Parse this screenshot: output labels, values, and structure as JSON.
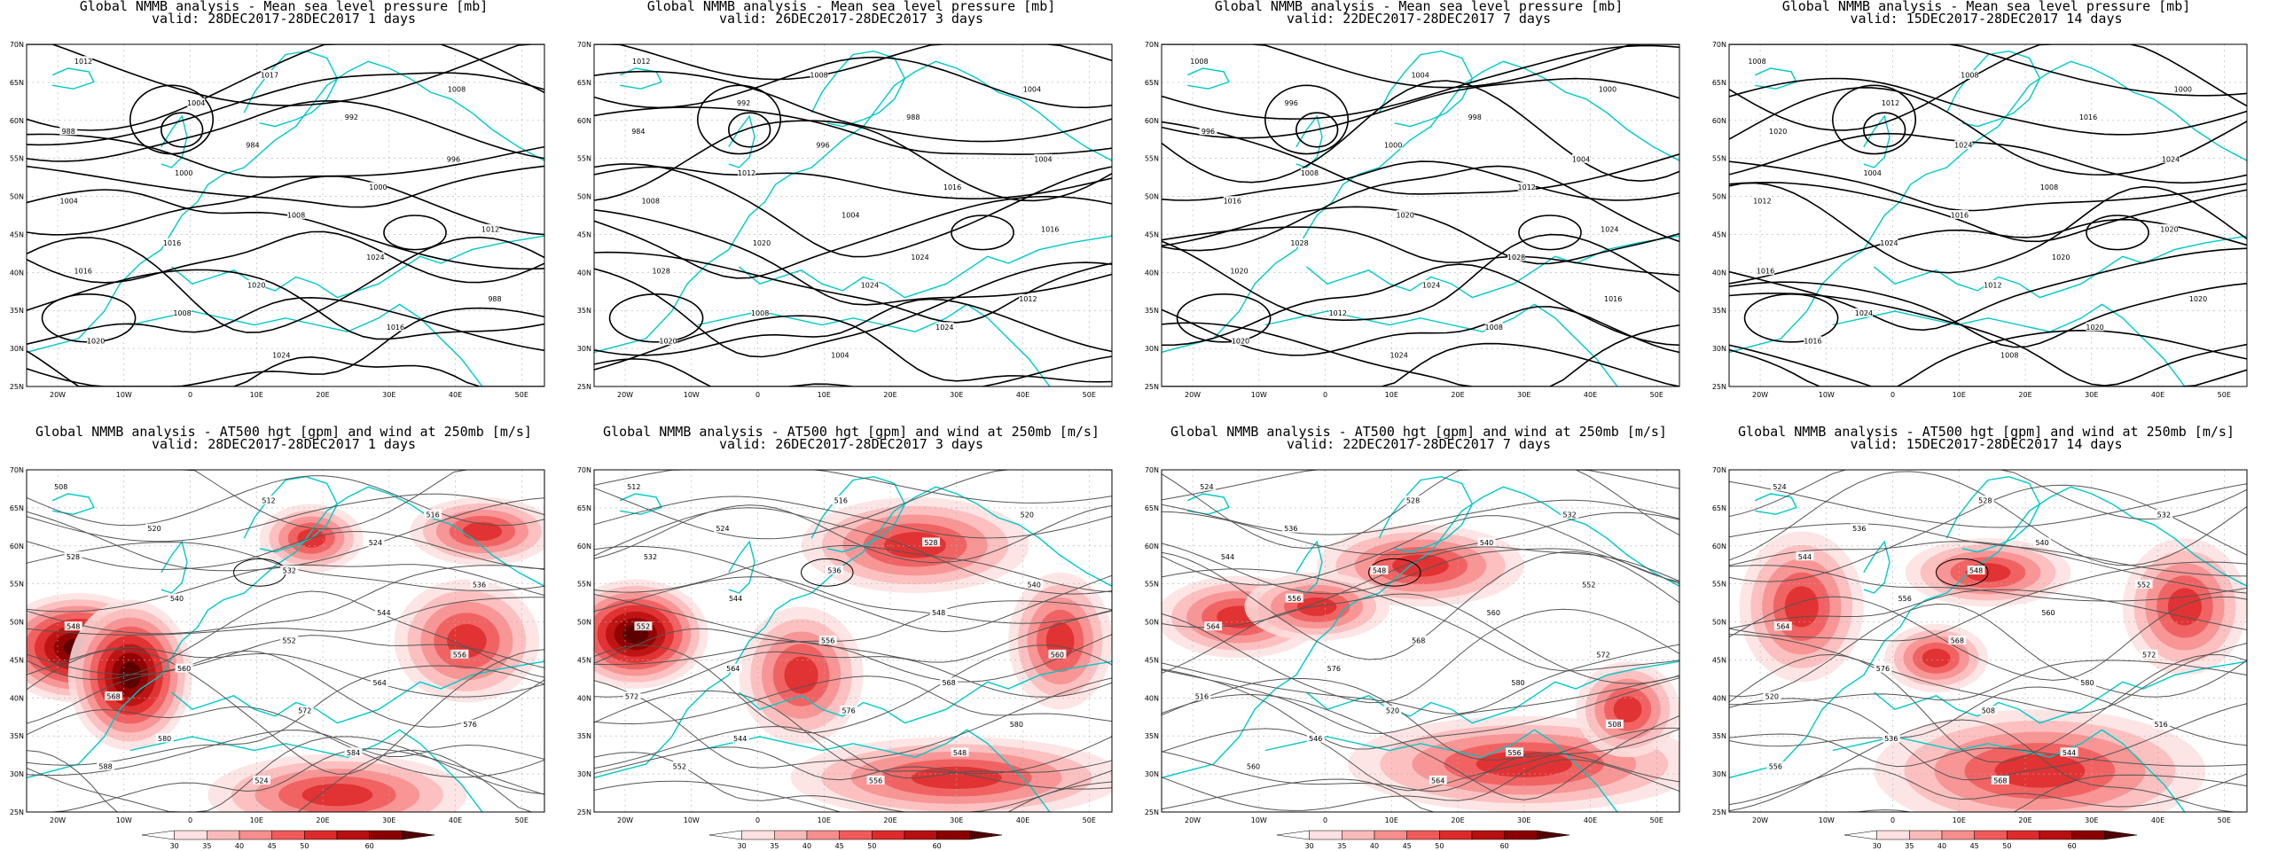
{
  "panels": [
    {
      "line1": "Global NMMB analysis - Mean sea level pressure [mb]",
      "line2": "valid: 28DEC2017-28DEC2017  1 days",
      "contour_labels": [
        "1012",
        "1017",
        "1008",
        "1004",
        "992",
        "988",
        "984",
        "996",
        "1000",
        "1000",
        "1004",
        "1008",
        "1012",
        "1016",
        "1024",
        "1016",
        "1020",
        "988",
        "1008",
        "1016",
        "1020",
        "1024"
      ]
    },
    {
      "line1": "Global NMMB analysis - Mean sea level pressure [mb]",
      "line2": "valid: 26DEC2017-28DEC2017  3 days",
      "contour_labels": [
        "1012",
        "1008",
        "1004",
        "992",
        "988",
        "984",
        "996",
        "1004",
        "1012",
        "1016",
        "1008",
        "1004",
        "1016",
        "1020",
        "1024",
        "1028",
        "1024",
        "1012",
        "1008",
        "1024",
        "1020",
        "1004"
      ]
    },
    {
      "line1": "Global NMMB analysis - Mean sea level pressure [mb]",
      "line2": "valid: 22DEC2017-28DEC2017  7 days",
      "contour_labels": [
        "1008",
        "1004",
        "1000",
        "996",
        "998",
        "996",
        "1000",
        "1004",
        "1008",
        "1012",
        "1016",
        "1020",
        "1024",
        "1028",
        "1028",
        "1020",
        "1024",
        "1016",
        "1012",
        "1008",
        "1020",
        "1024"
      ]
    },
    {
      "line1": "Global NMMB analysis - Mean sea level pressure [mb]",
      "line2": "valid: 15DEC2017-28DEC2017  14 days",
      "contour_labels": [
        "1008",
        "1008",
        "1000",
        "1012",
        "1016",
        "1020",
        "1024",
        "1024",
        "1004",
        "1008",
        "1012",
        "1016",
        "1020",
        "1024",
        "1020",
        "1016",
        "1012",
        "1020",
        "1024",
        "1020",
        "1016",
        "1008"
      ]
    },
    {
      "line1": "Global NMMB analysis - AT500 hgt [gpm] and wind at 250mb [m/s]",
      "line2": "valid: 28DEC2017-28DEC2017  1 days",
      "contour_labels": [
        "508",
        "512",
        "516",
        "520",
        "524",
        "528",
        "532",
        "536",
        "540",
        "544",
        "548",
        "552",
        "556",
        "560",
        "564",
        "568",
        "572",
        "576",
        "580",
        "584",
        "588",
        "524"
      ]
    },
    {
      "line1": "Global NMMB analysis - AT500 hgt [gpm] and wind at 250mb [m/s]",
      "line2": "valid: 26DEC2017-28DEC2017  3 days",
      "contour_labels": [
        "512",
        "516",
        "520",
        "524",
        "528",
        "532",
        "536",
        "540",
        "544",
        "548",
        "552",
        "556",
        "560",
        "564",
        "568",
        "572",
        "576",
        "580",
        "544",
        "548",
        "552",
        "556"
      ]
    },
    {
      "line1": "Global NMMB analysis - AT500 hgt [gpm] and wind at 250mb [m/s]",
      "line2": "valid: 22DEC2017-28DEC2017  7 days",
      "contour_labels": [
        "524",
        "528",
        "532",
        "536",
        "540",
        "544",
        "548",
        "552",
        "556",
        "560",
        "564",
        "568",
        "572",
        "576",
        "580",
        "516",
        "520",
        "508",
        "546",
        "556",
        "560",
        "564"
      ]
    },
    {
      "line1": "Global NMMB analysis - AT500 hgt [gpm] and wind at 250mb [m/s]",
      "line2": "valid: 15DEC2017-28DEC2017  14 days",
      "contour_labels": [
        "524",
        "528",
        "532",
        "536",
        "540",
        "544",
        "548",
        "552",
        "556",
        "560",
        "564",
        "568",
        "572",
        "576",
        "580",
        "520",
        "508",
        "516",
        "536",
        "544",
        "556",
        "568"
      ]
    }
  ],
  "lat_ticks": [
    "70N",
    "65N",
    "60N",
    "55N",
    "50N",
    "45N",
    "40N",
    "35N",
    "30N",
    "25N"
  ],
  "lon_ticks": [
    "20W",
    "10W",
    "0",
    "10E",
    "20E",
    "30E",
    "40E",
    "50E"
  ],
  "colorbar": {
    "labels": [
      "30",
      "35",
      "40",
      "45",
      "50",
      "60"
    ],
    "colors": [
      "#ffffff",
      "#fde0e0",
      "#fbbaba",
      "#f78d8d",
      "#f05a5a",
      "#de2a2a",
      "#b80f0f",
      "#8a0000",
      "#520000"
    ]
  },
  "colors": {
    "coast": "#00c8c8",
    "contour": "#000000",
    "thin_contour": "#555555",
    "grid": "#b0b0b0"
  }
}
